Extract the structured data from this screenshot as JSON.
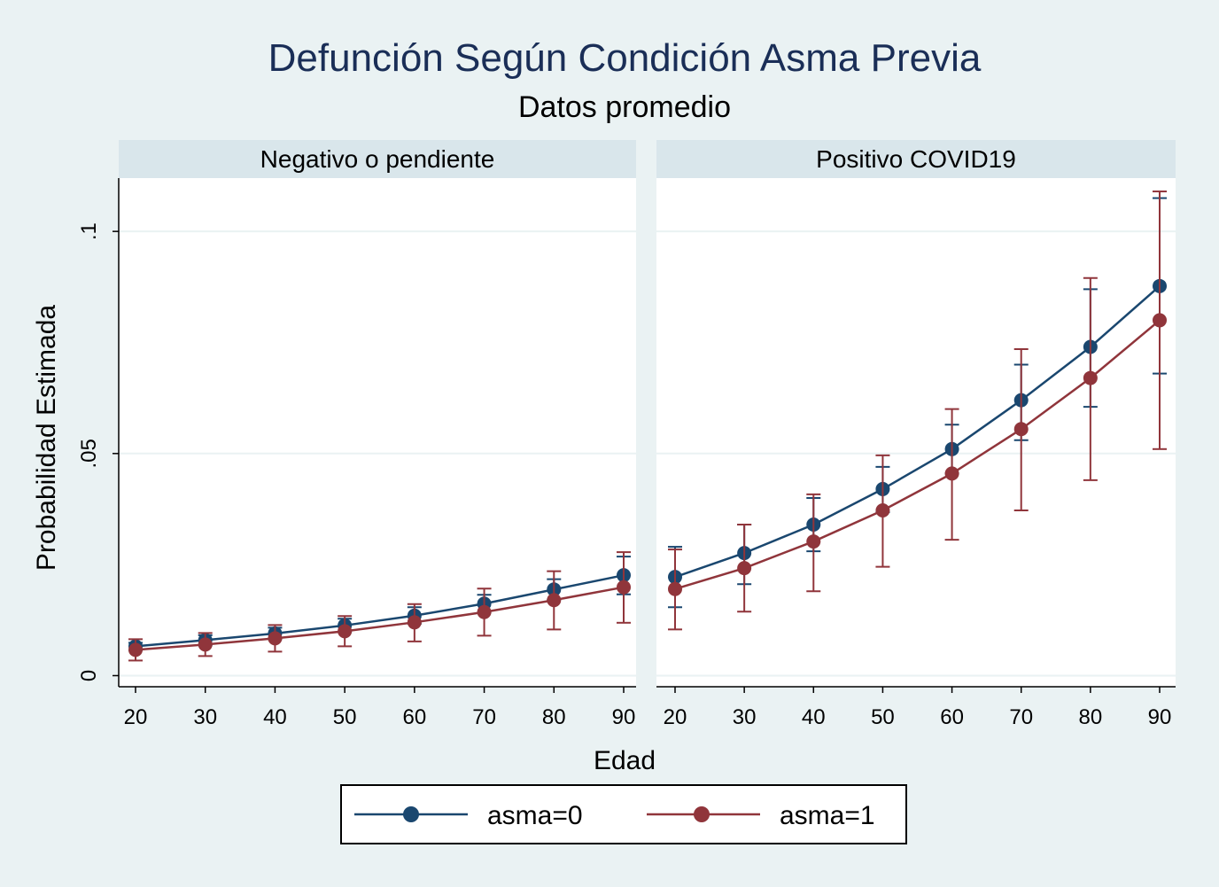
{
  "chart_data": {
    "type": "line",
    "title": "Defunción Según Condición Asma Previa",
    "subtitle": "Datos promedio",
    "xlabel": "Edad",
    "ylabel": "Probabilidad Estimada",
    "x": [
      20,
      30,
      40,
      50,
      60,
      70,
      80,
      90
    ],
    "x_tick_labels": [
      "20",
      "30",
      "40",
      "50",
      "60",
      "70",
      "80",
      "90"
    ],
    "ylim": [
      -0.0025,
      0.112
    ],
    "y_ticks": [
      0,
      0.05,
      0.1
    ],
    "y_tick_labels": [
      "0",
      ".05",
      ".1"
    ],
    "grid": true,
    "error_bars": true,
    "legend_position": "bottom",
    "colors": {
      "asma0": "#1a476f",
      "asma1": "#90353b",
      "background": "#eaf2f3",
      "strip": "#d9e6eb",
      "grid": "#eaf2f3"
    },
    "panels": [
      {
        "label": "Negativo o pendiente",
        "series": [
          {
            "name": "asma=0",
            "values": [
              0.0066,
              0.008,
              0.0095,
              0.0113,
              0.0135,
              0.0162,
              0.0194,
              0.0226
            ],
            "ci_low": [
              0.0057,
              0.0068,
              0.0082,
              0.0098,
              0.0117,
              0.0142,
              0.0171,
              0.0183
            ],
            "ci_high": [
              0.0074,
              0.0091,
              0.0108,
              0.0128,
              0.0154,
              0.0182,
              0.0217,
              0.0268
            ]
          },
          {
            "name": "asma=1",
            "values": [
              0.0058,
              0.007,
              0.0084,
              0.01,
              0.012,
              0.0143,
              0.017,
              0.0199
            ],
            "ci_low": [
              0.0034,
              0.0044,
              0.0054,
              0.0066,
              0.0077,
              0.009,
              0.0104,
              0.0119
            ],
            "ci_high": [
              0.0082,
              0.0096,
              0.0114,
              0.0134,
              0.0161,
              0.0196,
              0.0235,
              0.0278
            ]
          }
        ]
      },
      {
        "label": "Positivo COVID19",
        "series": [
          {
            "name": "asma=0",
            "values": [
              0.0222,
              0.0276,
              0.034,
              0.042,
              0.051,
              0.062,
              0.074,
              0.0877
            ],
            "ci_low": [
              0.0154,
              0.0206,
              0.028,
              0.0368,
              0.0455,
              0.053,
              0.0605,
              0.068
            ],
            "ci_high": [
              0.029,
              0.034,
              0.04,
              0.047,
              0.0565,
              0.07,
              0.087,
              0.1075
            ]
          },
          {
            "name": "asma=1",
            "values": [
              0.0195,
              0.0242,
              0.0302,
              0.0372,
              0.0455,
              0.0555,
              0.067,
              0.08
            ],
            "ci_low": [
              0.0104,
              0.0144,
              0.019,
              0.0245,
              0.0306,
              0.0372,
              0.044,
              0.051
            ],
            "ci_high": [
              0.0284,
              0.034,
              0.0408,
              0.0496,
              0.06,
              0.0735,
              0.0895,
              0.109
            ]
          }
        ]
      }
    ]
  }
}
